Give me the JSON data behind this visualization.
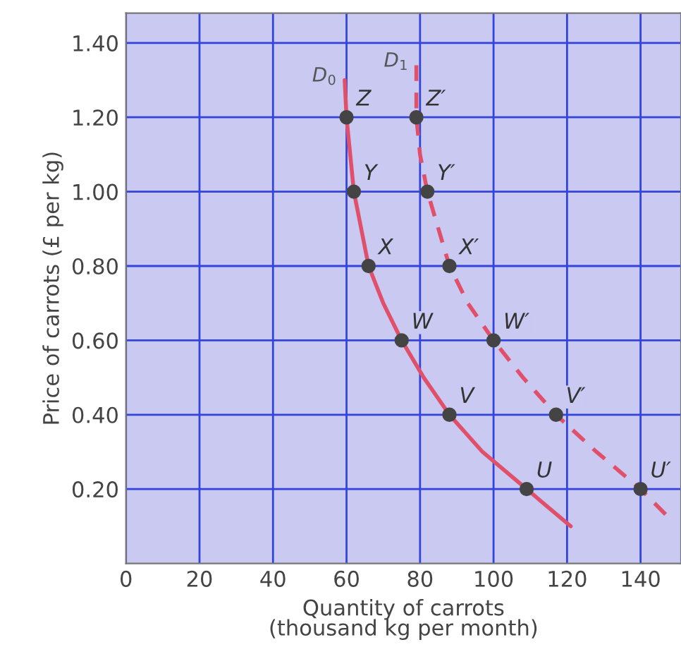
{
  "chart_data": {
    "type": "line",
    "xlabel": "Quantity of carrots\n(thousand kg per month)",
    "ylabel": "Price of carrots (£ per kg)",
    "xlim": [
      0,
      151
    ],
    "ylim": [
      0,
      1.48
    ],
    "xticks": [
      0,
      20,
      40,
      60,
      80,
      100,
      120,
      140
    ],
    "yticks": [
      {
        "value": 0.2,
        "label": "0.20"
      },
      {
        "value": 0.4,
        "label": "0.40"
      },
      {
        "value": 0.6,
        "label": "0.60"
      },
      {
        "value": 0.8,
        "label": "0.80"
      },
      {
        "value": 1.0,
        "label": "1.00"
      },
      {
        "value": 1.2,
        "label": "1.20"
      },
      {
        "value": 1.4,
        "label": "1.40"
      }
    ],
    "grid": true,
    "legend": false,
    "series": [
      {
        "name": "D$_{0}$",
        "color": "#e0506a",
        "line_style": "solid",
        "marker": "none",
        "x": [
          59.5,
          60,
          61,
          62,
          64,
          66,
          70,
          75,
          81,
          88,
          97,
          109,
          121
        ],
        "values": [
          1.3,
          1.2,
          1.1,
          1.0,
          0.9,
          0.8,
          0.7,
          0.6,
          0.5,
          0.4,
          0.3,
          0.2,
          0.1
        ]
      },
      {
        "name": "D$_{1}$",
        "color": "#e0506a",
        "line_style": "dashed",
        "marker": "none",
        "x": [
          79,
          79,
          80,
          82,
          85,
          88,
          93,
          100,
          108,
          117,
          128,
          140,
          148
        ],
        "values": [
          1.34,
          1.2,
          1.1,
          1.0,
          0.9,
          0.8,
          0.7,
          0.6,
          0.5,
          0.4,
          0.3,
          0.2,
          0.12
        ]
      },
      {
        "type": "scatter",
        "color": "#444444",
        "marker": "circle",
        "x": [
          60,
          62,
          66,
          75,
          88,
          109
        ],
        "values": [
          1.2,
          1.0,
          0.8,
          0.6,
          0.4,
          0.2
        ]
      },
      {
        "type": "scatter",
        "color": "#444444",
        "marker": "circle",
        "x": [
          79,
          82,
          88,
          100,
          117,
          140
        ],
        "values": [
          1.2,
          1.0,
          0.8,
          0.6,
          0.4,
          0.2
        ]
      }
    ],
    "annotations": [
      {
        "text": "Z",
        "x": 60,
        "y": 1.2
      },
      {
        "text": "Y",
        "x": 62,
        "y": 1.0
      },
      {
        "text": "X",
        "x": 66,
        "y": 0.8
      },
      {
        "text": "W",
        "x": 75,
        "y": 0.6
      },
      {
        "text": "V",
        "x": 88,
        "y": 0.4
      },
      {
        "text": "U",
        "x": 109,
        "y": 0.2
      },
      {
        "text": "Z′",
        "x": 79,
        "y": 1.2
      },
      {
        "text": "Y′",
        "x": 82,
        "y": 1.0
      },
      {
        "text": "X′",
        "x": 88,
        "y": 0.8
      },
      {
        "text": "W′",
        "x": 100,
        "y": 0.6
      },
      {
        "text": "V′",
        "x": 117,
        "y": 0.4
      },
      {
        "text": "U′",
        "x": 140,
        "y": 0.2
      }
    ]
  }
}
